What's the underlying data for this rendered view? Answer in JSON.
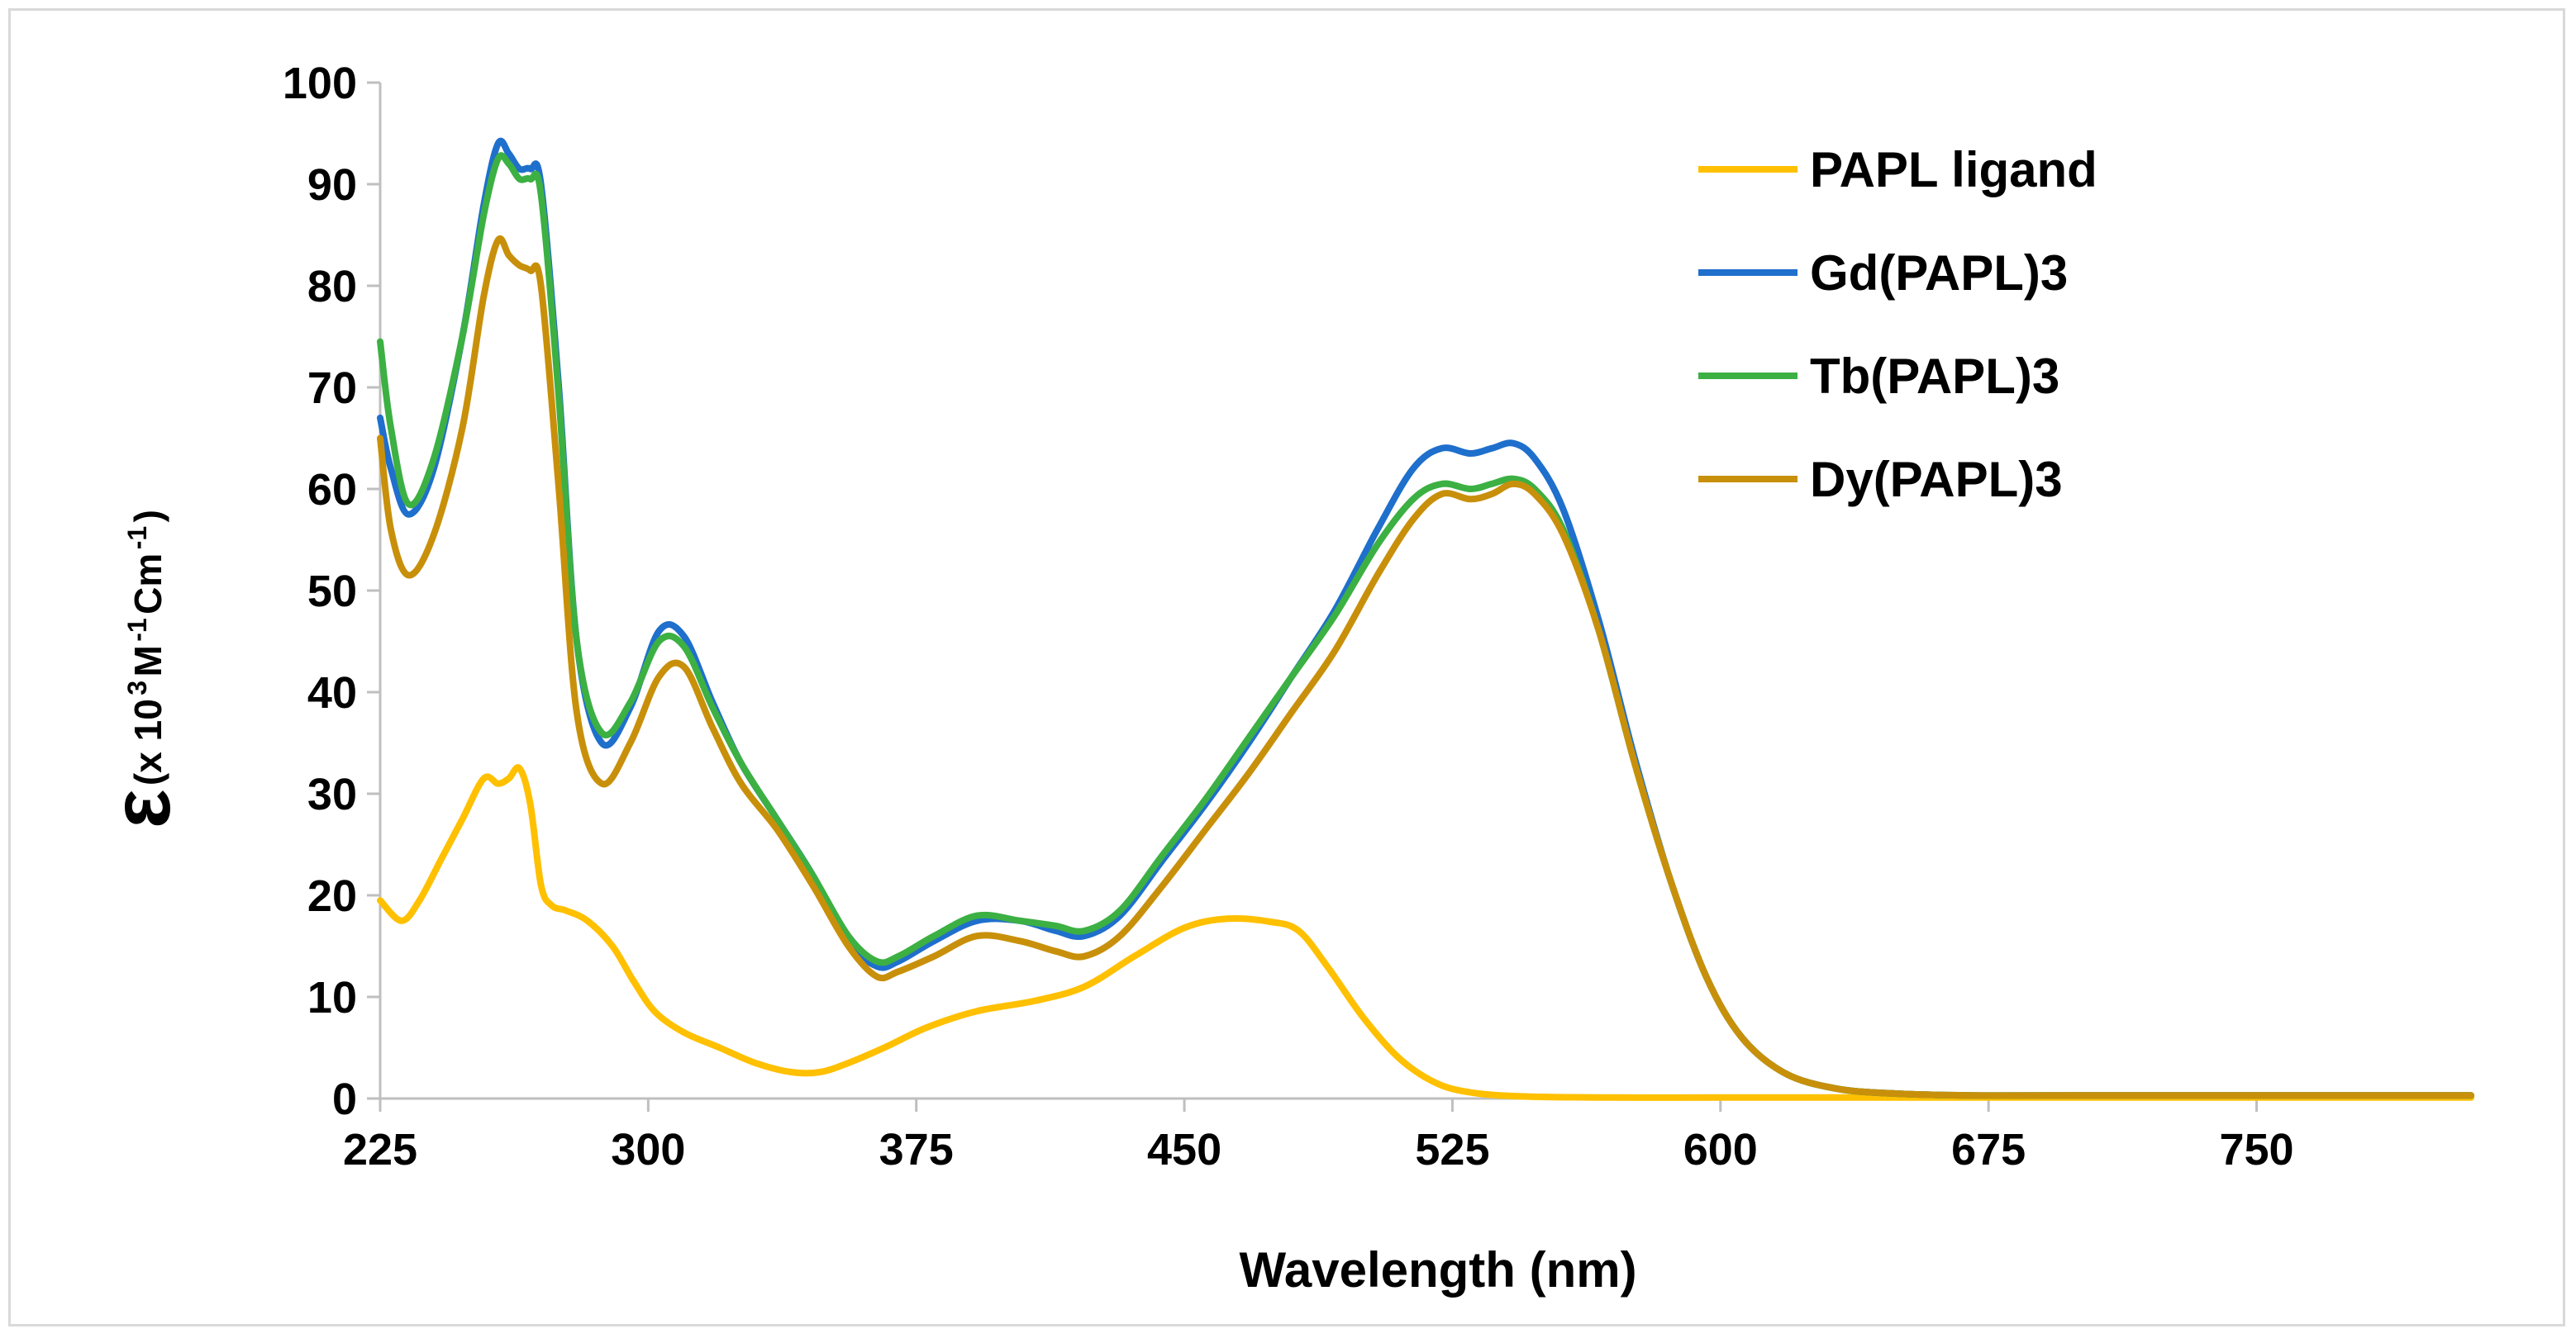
{
  "chart_data": {
    "type": "line",
    "title": "",
    "xlabel": "Wavelength (nm)",
    "ylabel": {
      "symbol": "ε",
      "open": "(x 10",
      "sup1": "3",
      "mid": " M",
      "sup2": "-1",
      "mid2": " Cm",
      "sup3": "-1",
      "close": ")"
    },
    "xlim": [
      225,
      810
    ],
    "ylim": [
      0,
      100
    ],
    "xticks": [
      225,
      300,
      375,
      450,
      525,
      600,
      675,
      750
    ],
    "yticks": [
      0,
      10,
      20,
      30,
      40,
      50,
      60,
      70,
      80,
      90,
      100
    ],
    "grid": false,
    "legend_position": "top-right",
    "series": [
      {
        "name": "PAPL ligand",
        "color": "#FFC000",
        "x": [
          225,
          231,
          236,
          242,
          248,
          254,
          258,
          261,
          264,
          267,
          270,
          273,
          277,
          283,
          290,
          296,
          302,
          310,
          320,
          330,
          340,
          348,
          356,
          366,
          378,
          392,
          408,
          422,
          436,
          450,
          462,
          474,
          482,
          490,
          500,
          510,
          520,
          530,
          545,
          570,
          600,
          650,
          700,
          750,
          810
        ],
        "y": [
          19.5,
          17.5,
          19.5,
          23.5,
          27.5,
          31.5,
          31,
          31.5,
          32.5,
          29,
          21,
          19,
          18.5,
          17.5,
          15,
          11.5,
          8.5,
          6.5,
          5,
          3.5,
          2.6,
          2.6,
          3.5,
          5,
          7,
          8.6,
          9.6,
          11,
          14,
          16.8,
          17.7,
          17.4,
          16.5,
          13,
          8,
          4,
          1.6,
          0.6,
          0.2,
          0.1,
          0.1,
          0.1,
          0.1,
          0.1,
          0.1
        ]
      },
      {
        "name": "Gd(PAPL)3",
        "color": "#1F6FCC",
        "x": [
          225,
          228,
          233,
          240,
          248,
          254,
          258,
          261,
          264,
          267,
          270,
          275,
          280,
          287,
          295,
          303,
          310,
          318,
          326,
          336,
          346,
          356,
          364,
          370,
          380,
          392,
          404,
          414,
          422,
          432,
          444,
          456,
          468,
          480,
          492,
          504,
          514,
          522,
          530,
          536,
          542,
          548,
          556,
          566,
          576,
          586,
          596,
          606,
          618,
          632,
          648,
          670,
          700,
          750,
          810
        ],
        "y": [
          67,
          62,
          57.5,
          62,
          75,
          88,
          94,
          93,
          91.5,
          91.5,
          90,
          70,
          45,
          35,
          38.5,
          46,
          45.5,
          39,
          33,
          27.5,
          22,
          15.5,
          13,
          13.5,
          15.5,
          17.5,
          17.5,
          16.5,
          16,
          18,
          23.5,
          29,
          35,
          41.5,
          48,
          56,
          62,
          64,
          63.5,
          64,
          64.5,
          63,
          58,
          47,
          33.5,
          21.5,
          12,
          6,
          2.5,
          1,
          0.5,
          0.3,
          0.3,
          0.3,
          0.3
        ]
      },
      {
        "name": "Tb(PAPL)3",
        "color": "#3CB043",
        "x": [
          225,
          228,
          233,
          240,
          248,
          254,
          258,
          261,
          264,
          267,
          270,
          275,
          280,
          287,
          295,
          303,
          310,
          318,
          326,
          336,
          346,
          356,
          364,
          370,
          380,
          392,
          404,
          414,
          422,
          432,
          444,
          456,
          468,
          480,
          492,
          504,
          514,
          522,
          530,
          536,
          542,
          548,
          556,
          566,
          576,
          586,
          596,
          606,
          618,
          632,
          648,
          670,
          700,
          750,
          810
        ],
        "y": [
          74.5,
          66,
          58.5,
          63,
          75,
          87,
          92.5,
          92,
          90.5,
          90.5,
          89,
          69,
          45,
          36,
          39,
          45,
          44.5,
          38.5,
          33,
          27.5,
          22,
          16,
          13.5,
          14,
          16,
          18,
          17.5,
          17,
          16.5,
          18.5,
          24,
          29.5,
          35.5,
          41.5,
          47.5,
          54.5,
          59,
          60.5,
          60,
          60.5,
          61,
          60,
          56,
          46,
          33,
          21.5,
          12,
          6,
          2.5,
          1,
          0.5,
          0.3,
          0.3,
          0.3,
          0.3
        ]
      },
      {
        "name": "Dy(PAPL)3",
        "color": "#C8900A",
        "x": [
          225,
          228,
          233,
          240,
          248,
          254,
          258,
          261,
          264,
          267,
          270,
          275,
          280,
          287,
          295,
          303,
          310,
          318,
          326,
          336,
          346,
          356,
          364,
          370,
          380,
          392,
          404,
          414,
          422,
          432,
          444,
          456,
          468,
          480,
          492,
          504,
          514,
          522,
          530,
          536,
          542,
          548,
          556,
          566,
          576,
          586,
          596,
          606,
          618,
          632,
          648,
          670,
          700,
          750,
          810
        ],
        "y": [
          65,
          56,
          51.5,
          55.5,
          66,
          79,
          84.5,
          83,
          82,
          81.5,
          80,
          60,
          38,
          31,
          35,
          41.5,
          42.5,
          36.5,
          31,
          26.5,
          21,
          15,
          12,
          12.5,
          14,
          16,
          15.5,
          14.5,
          14,
          16,
          21,
          26.5,
          32,
          38,
          44,
          51.5,
          57,
          59.5,
          59,
          59.5,
          60.5,
          59.5,
          55.5,
          46,
          33,
          21.5,
          12,
          6,
          2.5,
          1,
          0.5,
          0.3,
          0.3,
          0.3,
          0.3
        ]
      }
    ]
  }
}
